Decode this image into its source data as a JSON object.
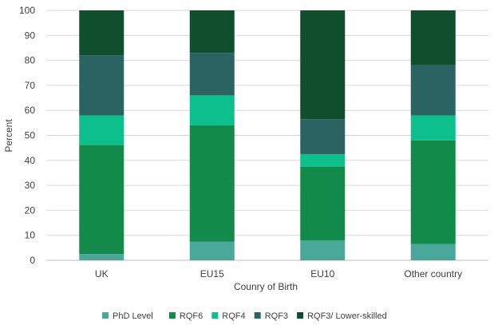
{
  "chart_data": {
    "type": "bar",
    "stacked": true,
    "title": "",
    "xlabel": "Counry of Birth",
    "ylabel": "Percent",
    "ylim": [
      0,
      100
    ],
    "yticks": [
      0,
      10,
      20,
      30,
      40,
      50,
      60,
      70,
      80,
      90,
      100
    ],
    "grid": true,
    "legend_position": "bottom",
    "categories": [
      "UK",
      "EU15",
      "EU10",
      "Other country"
    ],
    "series": [
      {
        "name": "PhD Level",
        "color": "#4aa89b",
        "values": [
          2.5,
          7.5,
          8,
          6.5
        ]
      },
      {
        "name": "RQF6",
        "color": "#118a4a",
        "values": [
          43.5,
          46.5,
          29.5,
          41.5
        ]
      },
      {
        "name": "RQF4",
        "color": "#0dbf8c",
        "values": [
          12,
          12,
          5,
          10
        ]
      },
      {
        "name": "RQF3",
        "color": "#2b6363",
        "values": [
          24,
          17,
          14,
          20
        ]
      },
      {
        "name": "RQF3/ Lower-skilled",
        "color": "#0f4f2e",
        "values": [
          18,
          17,
          43.5,
          22
        ]
      }
    ]
  }
}
